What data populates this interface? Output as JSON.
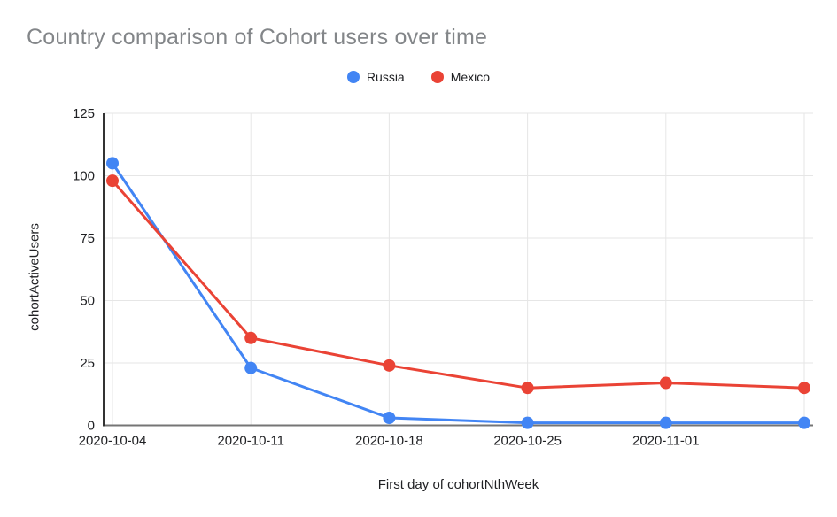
{
  "chart_data": {
    "type": "line",
    "title": "Country comparison of Cohort users over time",
    "xlabel": "First day of cohortNthWeek",
    "ylabel": "cohortActiveUsers",
    "categories": [
      "2020-10-04",
      "2020-10-11",
      "2020-10-18",
      "2020-10-25",
      "2020-11-01",
      ""
    ],
    "series": [
      {
        "name": "Russia",
        "color": "#4285F4",
        "values": [
          105,
          23,
          3,
          1,
          1,
          1
        ]
      },
      {
        "name": "Mexico",
        "color": "#EA4335",
        "values": [
          98,
          35,
          24,
          15,
          17,
          15
        ]
      }
    ],
    "ylim": [
      0,
      125
    ],
    "yticks": [
      0,
      25,
      50,
      75,
      100,
      125
    ],
    "grid": true,
    "legend_position": "top-center",
    "colors": {
      "title_text": "#838689",
      "axis_text": "#202124",
      "gridline": "#e6e6e6",
      "x_axis_line": "#757575",
      "y_axis_line": "#333333",
      "background": "#ffffff"
    }
  }
}
